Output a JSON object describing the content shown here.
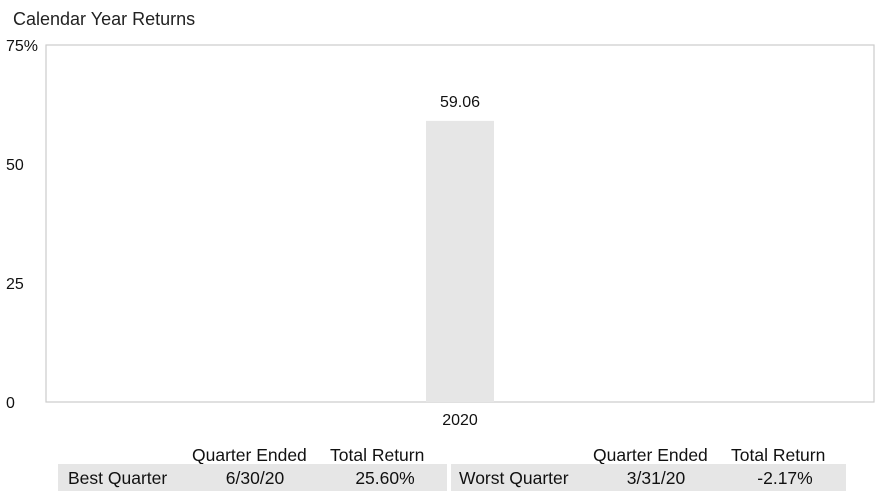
{
  "chart_data": {
    "type": "bar",
    "title": "Calendar Year Returns",
    "categories": [
      "2020"
    ],
    "values": [
      59.06
    ],
    "data_labels": [
      "59.06"
    ],
    "xlabel": "",
    "ylabel": "",
    "ylim": [
      0,
      75
    ],
    "y_ticks": [
      0,
      25,
      50,
      75
    ],
    "y_tick_labels": [
      "0",
      "25",
      "50",
      "75%"
    ],
    "grid": false,
    "bar_color": "#e6e6e6",
    "frame_color": "#cccccc"
  },
  "quarter_table": {
    "best": {
      "label": "Best Quarter",
      "quarter_ended_header": "Quarter Ended",
      "total_return_header": "Total Return",
      "quarter_ended": "6/30/20",
      "total_return": "25.60%"
    },
    "worst": {
      "label": "Worst Quarter",
      "quarter_ended_header": "Quarter Ended",
      "total_return_header": "Total Return",
      "quarter_ended": "3/31/20",
      "total_return": "-2.17%"
    }
  }
}
